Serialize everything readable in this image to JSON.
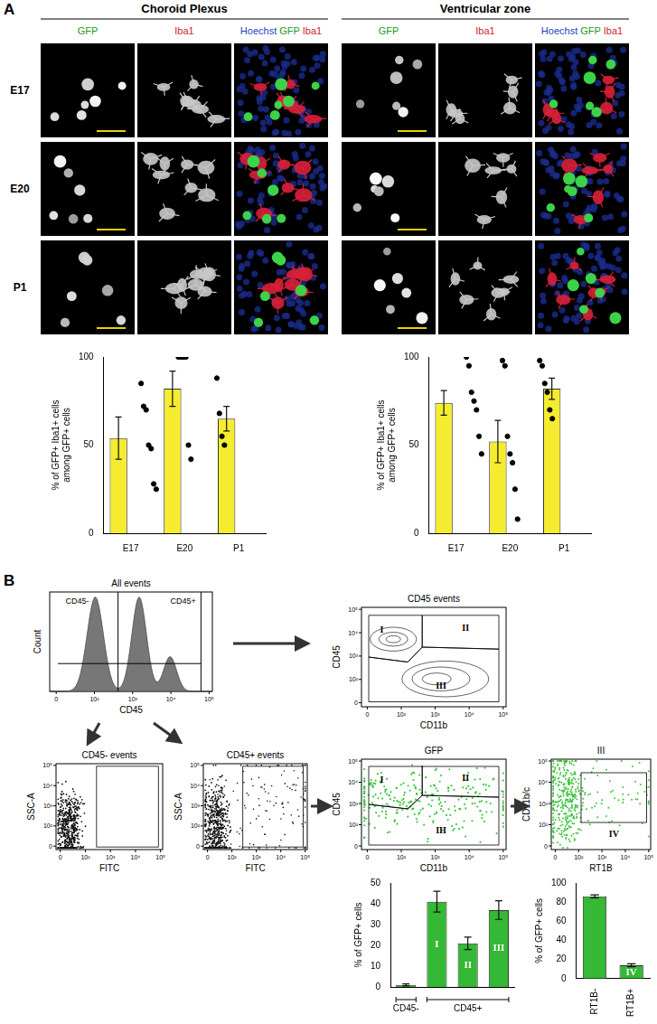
{
  "figure": {
    "panel_A": {
      "label": "A",
      "sections": [
        "Choroid Plexus",
        "Ventricular zone"
      ],
      "channels": [
        "GFP",
        "Iba1"
      ],
      "merge": [
        "Hoechst",
        "GFP",
        "Iba1"
      ],
      "rows": [
        "E17",
        "E20",
        "P1"
      ]
    },
    "panel_B": {
      "label": "B",
      "axis_ticks": [
        "0",
        "10²",
        "10³",
        "10⁴",
        "10⁵"
      ],
      "histogram": {
        "title": "All events",
        "ylabel": "Count",
        "xlabel": "CD45",
        "gates": [
          "CD45-",
          "CD45+"
        ]
      },
      "plots": [
        {
          "title": "CD45 events",
          "xlabel": "CD11b",
          "ylabel": "CD45",
          "gates": [
            "I",
            "II",
            "III"
          ]
        },
        {
          "title": "CD45- events",
          "xlabel": "FITC",
          "ylabel": "SSC-A",
          "gates": []
        },
        {
          "title": "CD45+ events",
          "xlabel": "FITC",
          "ylabel": "SSC-A",
          "gates": []
        },
        {
          "title": "GFP",
          "xlabel": "CD11b",
          "ylabel": "CD45",
          "gates": [
            "I",
            "II",
            "III"
          ]
        },
        {
          "title": "III",
          "xlabel": "RT1B",
          "ylabel": "CD11b/c",
          "gates": [
            "IV"
          ]
        }
      ]
    }
  },
  "chart_data": [
    {
      "type": "bar",
      "categories": [
        "E17",
        "E20",
        "P1"
      ],
      "values": [
        54,
        82,
        65
      ],
      "errors": [
        12,
        10,
        7
      ],
      "points": [
        [
          85,
          72,
          70,
          50,
          48,
          28,
          25
        ],
        [
          100,
          100,
          100,
          100,
          50,
          42
        ],
        [
          88,
          68,
          55,
          50
        ]
      ],
      "color": "#f5ec2f",
      "ylabel": [
        "% of GFP+ Iba1+ cells",
        "among GFP+ cells"
      ],
      "ylim": [
        0,
        100
      ],
      "yticks": [
        0,
        50,
        100
      ],
      "grid": false
    },
    {
      "type": "bar",
      "categories": [
        "E17",
        "E20",
        "P1"
      ],
      "values": [
        74,
        52,
        82
      ],
      "errors": [
        7,
        12,
        6
      ],
      "points": [
        [
          100,
          95,
          80,
          75,
          70,
          55,
          45
        ],
        [
          98,
          95,
          55,
          45,
          40,
          25,
          8
        ],
        [
          98,
          95,
          85,
          80,
          70,
          65
        ]
      ],
      "color": "#f5ec2f",
      "ylabel": [
        "% of GFP+ Iba1+ cells",
        "among GFP+ cells"
      ],
      "ylim": [
        0,
        100
      ],
      "yticks": [
        0,
        50,
        100
      ],
      "grid": false
    },
    {
      "type": "bar",
      "categories": [
        null,
        "I",
        "II",
        "III"
      ],
      "values": [
        1,
        41,
        21,
        37
      ],
      "errors": [
        0.5,
        5,
        3,
        4.5
      ],
      "group_labels": [
        {
          "label": "CD45-",
          "from": 0,
          "to": 0
        },
        {
          "label": "CD45+",
          "from": 1,
          "to": 3
        }
      ],
      "color": "#35b835",
      "ylabel": "% of GFP+ cells",
      "ylim": [
        0,
        50
      ],
      "yticks": [
        0,
        10,
        20,
        30,
        40,
        50
      ],
      "grid": false
    },
    {
      "type": "bar",
      "categories": [
        "RT1B-",
        "RT1B+"
      ],
      "values": [
        86,
        14
      ],
      "errors": [
        1.5,
        1.5
      ],
      "bar_labels": [
        null,
        "IV"
      ],
      "color": "#35b835",
      "ylabel": "% of GFP+ cells",
      "ylim": [
        0,
        100
      ],
      "yticks": [
        0,
        20,
        40,
        60,
        80,
        100
      ],
      "grid": false
    }
  ]
}
